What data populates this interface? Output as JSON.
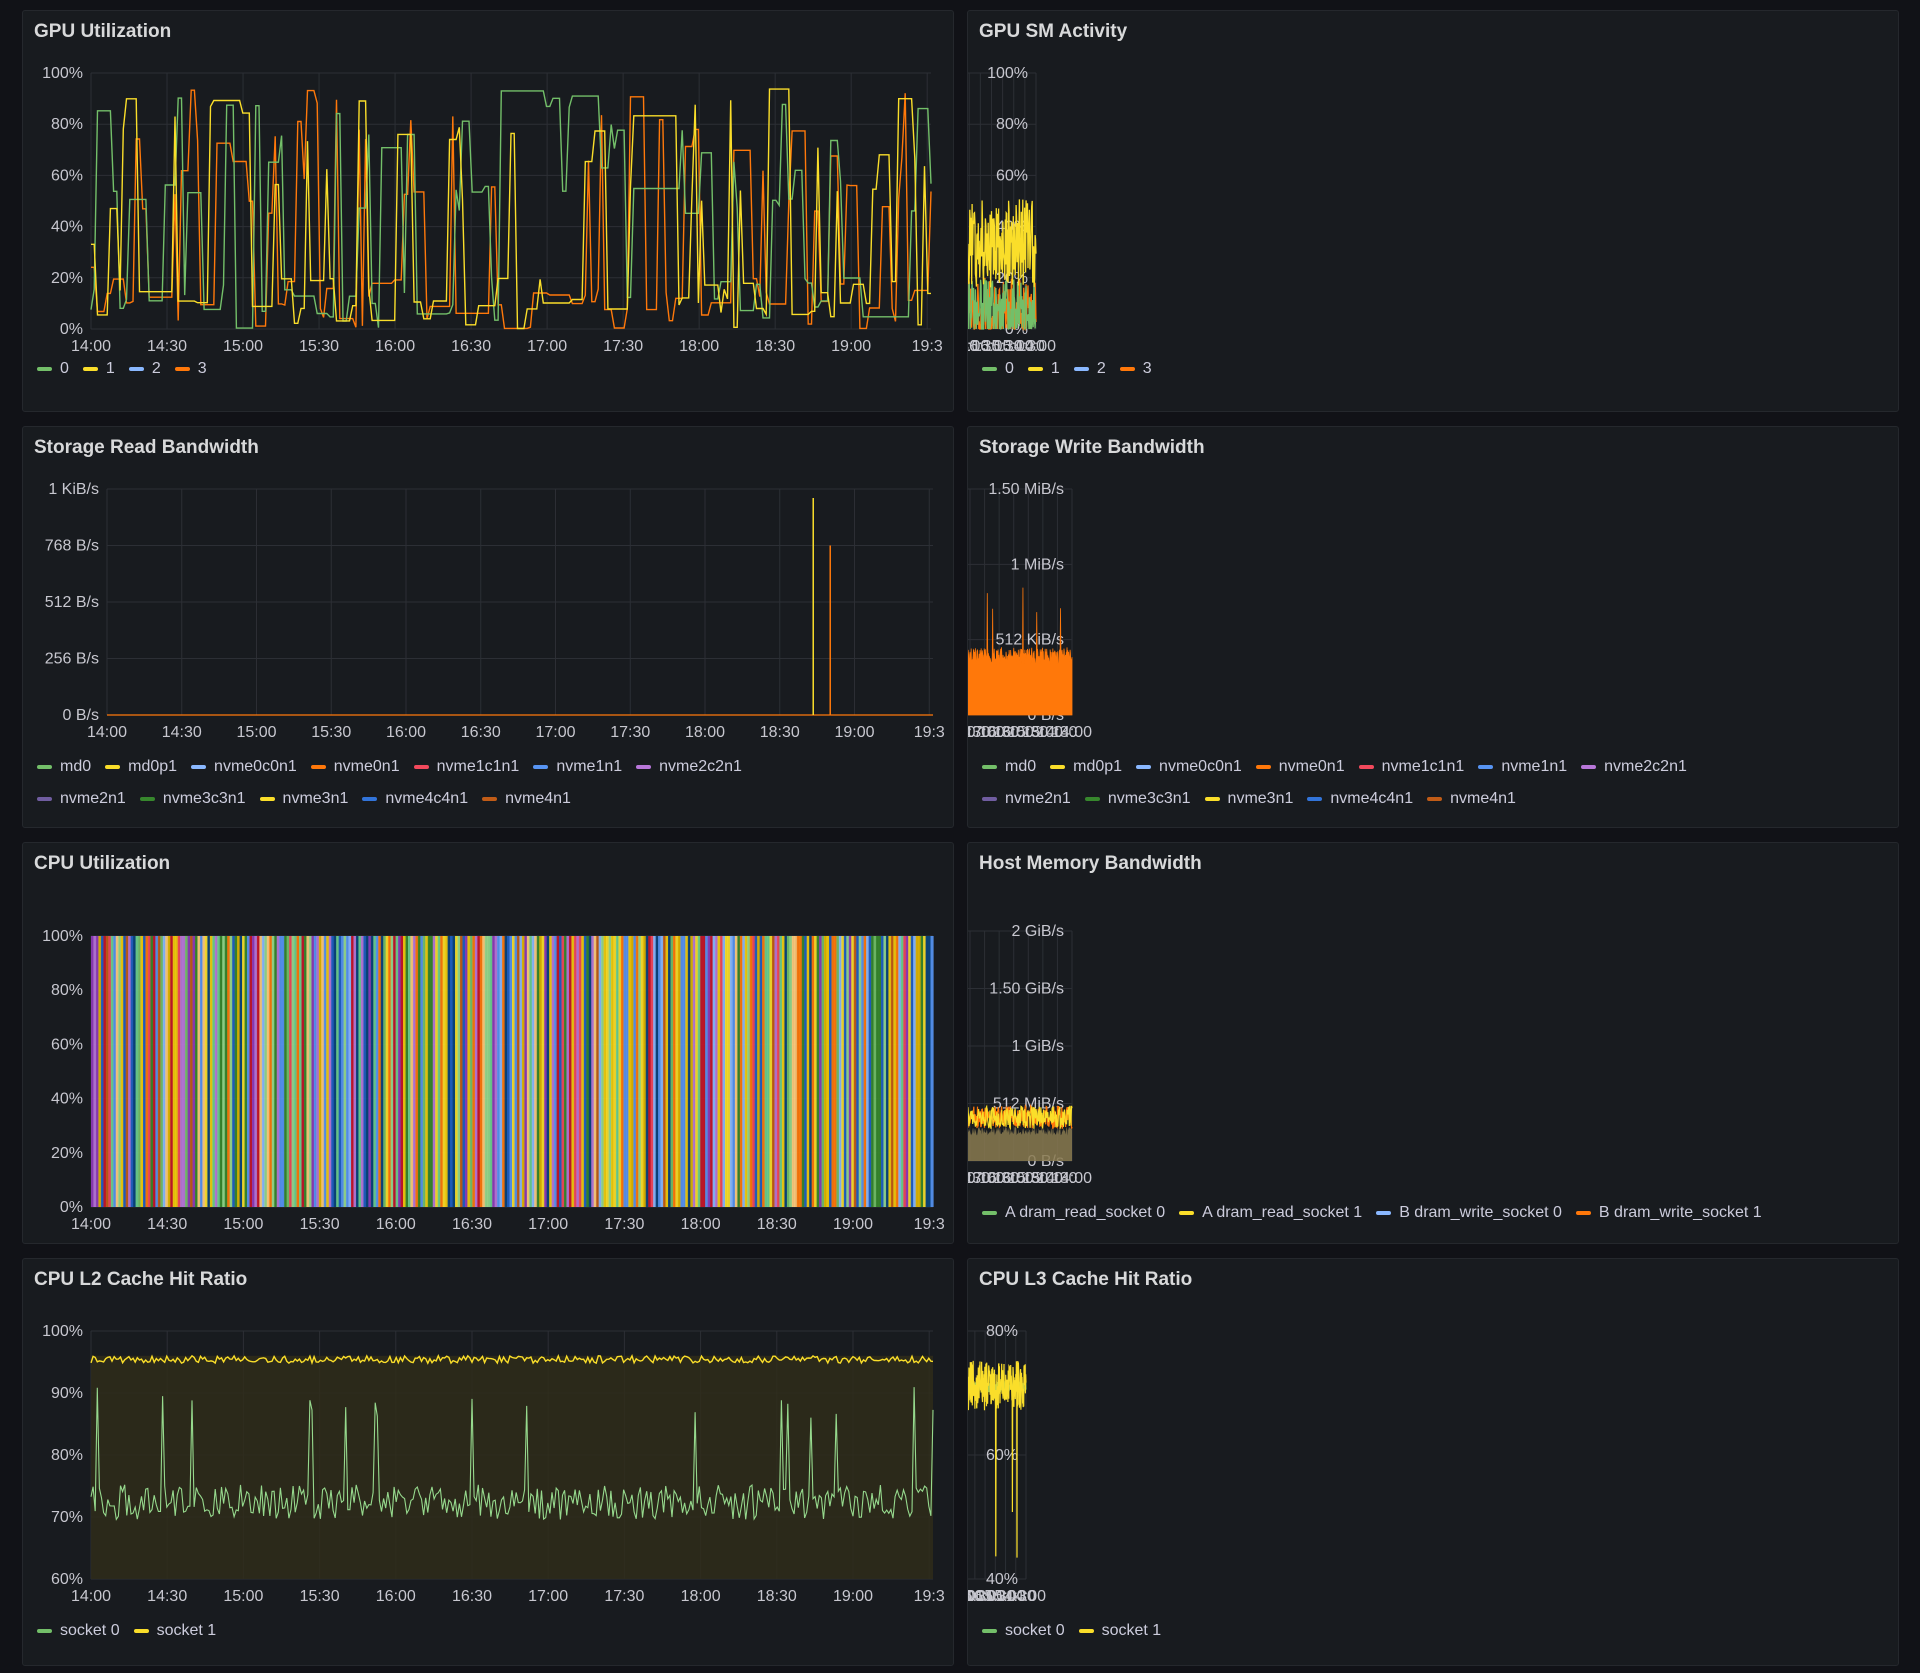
{
  "dashboard": {
    "panels": [
      {
        "id": "gpu-util",
        "title": "GPU Utilization",
        "xticks": [
          "14:00",
          "14:30",
          "15:00",
          "15:30",
          "16:00",
          "16:30",
          "17:00",
          "17:30",
          "18:00",
          "18:30",
          "19:00",
          "19:3"
        ],
        "yticks": [
          "0%",
          "20%",
          "40%",
          "60%",
          "80%",
          "100%"
        ],
        "legend": [
          [
            "0",
            "1",
            "2",
            "3"
          ]
        ],
        "legend_colors": [
          [
            "#73bf69",
            "#fade2a",
            "#8ab8ff",
            "#ff780a"
          ]
        ]
      },
      {
        "id": "gpu-sm",
        "title": "GPU SM Activity",
        "xticks": [
          "14:00",
          "14:30",
          "15:00",
          "15:30",
          "16:00",
          "16:30",
          "17:00",
          "17:30",
          "18:00",
          "18:30",
          "19:00",
          "19:3"
        ],
        "yticks": [
          "0%",
          "20%",
          "40%",
          "60%",
          "80%",
          "100%"
        ],
        "legend": [
          [
            "0",
            "1",
            "2",
            "3"
          ]
        ],
        "legend_colors": [
          [
            "#73bf69",
            "#fade2a",
            "#8ab8ff",
            "#ff780a"
          ]
        ]
      },
      {
        "id": "storage-read",
        "title": "Storage Read Bandwidth",
        "xticks": [
          "14:00",
          "14:30",
          "15:00",
          "15:30",
          "16:00",
          "16:30",
          "17:00",
          "17:30",
          "18:00",
          "18:30",
          "19:00",
          "19:3"
        ],
        "yticks": [
          "0 B/s",
          "256 B/s",
          "512 B/s",
          "768 B/s",
          "1 KiB/s"
        ],
        "legend": [
          [
            "md0",
            "md0p1",
            "nvme0c0n1",
            "nvme0n1",
            "nvme1c1n1",
            "nvme1n1",
            "nvme2c2n1"
          ],
          [
            "nvme2n1",
            "nvme3c3n1",
            "nvme3n1",
            "nvme4c4n1",
            "nvme4n1"
          ]
        ],
        "legend_colors": [
          [
            "#73bf69",
            "#fade2a",
            "#8ab8ff",
            "#ff780a",
            "#f2495c",
            "#5794f2",
            "#b877d9"
          ],
          [
            "#705da0",
            "#37872d",
            "#fade2a",
            "#3274d9",
            "#c15c17"
          ]
        ]
      },
      {
        "id": "storage-write",
        "title": "Storage Write Bandwidth",
        "xticks": [
          "14:00",
          "14:30",
          "15:00",
          "15:30",
          "16:00",
          "16:30",
          "17:00",
          "17:30",
          "18:00",
          "18:30",
          "19:00",
          "19:3"
        ],
        "yticks": [
          "0 B/s",
          "512 KiB/s",
          "1 MiB/s",
          "1.50 MiB/s"
        ],
        "legend": [
          [
            "md0",
            "md0p1",
            "nvme0c0n1",
            "nvme0n1",
            "nvme1c1n1",
            "nvme1n1",
            "nvme2c2n1"
          ],
          [
            "nvme2n1",
            "nvme3c3n1",
            "nvme3n1",
            "nvme4c4n1",
            "nvme4n1"
          ]
        ],
        "legend_colors": [
          [
            "#73bf69",
            "#fade2a",
            "#8ab8ff",
            "#ff780a",
            "#f2495c",
            "#5794f2",
            "#b877d9"
          ],
          [
            "#705da0",
            "#37872d",
            "#fade2a",
            "#3274d9",
            "#c15c17"
          ]
        ]
      },
      {
        "id": "cpu-util",
        "title": "CPU Utilization",
        "xticks": [
          "14:00",
          "14:30",
          "15:00",
          "15:30",
          "16:00",
          "16:30",
          "17:00",
          "17:30",
          "18:00",
          "18:30",
          "19:00",
          "19:3"
        ],
        "yticks": [
          "0%",
          "20%",
          "40%",
          "60%",
          "80%",
          "100%"
        ],
        "legend": [],
        "legend_colors": []
      },
      {
        "id": "host-mem",
        "title": "Host Memory Bandwidth",
        "xticks": [
          "14:00",
          "14:30",
          "15:00",
          "15:30",
          "16:00",
          "16:30",
          "17:00",
          "17:30",
          "18:00",
          "18:30",
          "19:00",
          "19:3"
        ],
        "yticks": [
          "0 B/s",
          "512 MiB/s",
          "1 GiB/s",
          "1.50 GiB/s",
          "2 GiB/s"
        ],
        "legend": [
          [
            "A dram_read_socket 0",
            "A dram_read_socket 1",
            "B dram_write_socket 0",
            "B dram_write_socket 1"
          ]
        ],
        "legend_colors": [
          [
            "#73bf69",
            "#fade2a",
            "#8ab8ff",
            "#ff780a"
          ]
        ]
      },
      {
        "id": "l2-hit",
        "title": "CPU L2 Cache Hit Ratio",
        "xticks": [
          "14:00",
          "14:30",
          "15:00",
          "15:30",
          "16:00",
          "16:30",
          "17:00",
          "17:30",
          "18:00",
          "18:30",
          "19:00",
          "19:3"
        ],
        "yticks": [
          "60%",
          "70%",
          "80%",
          "90%",
          "100%"
        ],
        "legend": [
          [
            "socket 0",
            "socket 1"
          ]
        ],
        "legend_colors": [
          [
            "#73bf69",
            "#fade2a"
          ]
        ]
      },
      {
        "id": "l3-hit",
        "title": "CPU L3 Cache Hit Ratio",
        "xticks": [
          "14:00",
          "14:30",
          "15:00",
          "15:30",
          "16:00",
          "16:30",
          "17:00",
          "17:30",
          "18:00",
          "18:30",
          "19:00",
          "19:3"
        ],
        "yticks": [
          "40%",
          "60%",
          "80%"
        ],
        "legend": [
          [
            "socket 0",
            "socket 1"
          ]
        ],
        "legend_colors": [
          [
            "#73bf69",
            "#fade2a"
          ]
        ]
      }
    ]
  }
}
